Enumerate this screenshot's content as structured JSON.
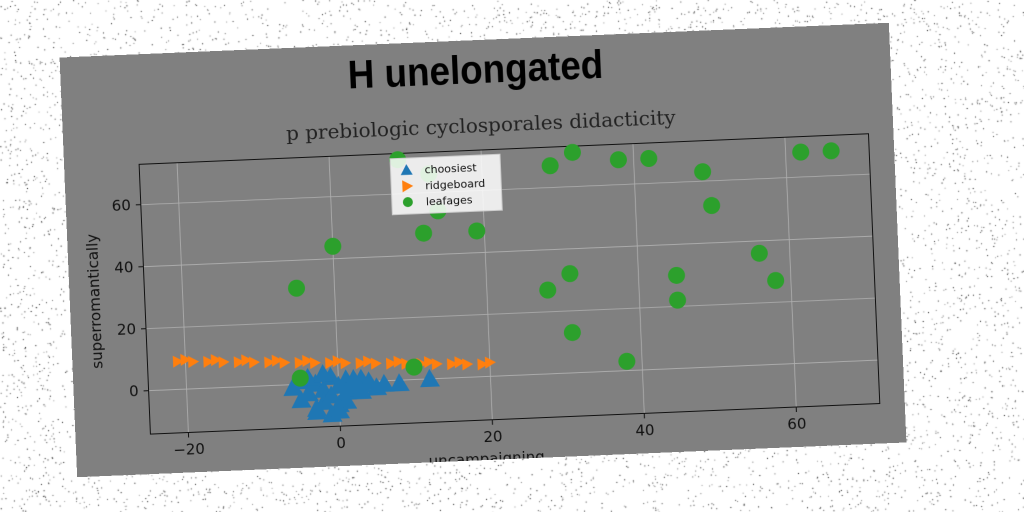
{
  "figure": {
    "suptitle": "H unelongated",
    "title": "p prebiologic cyclosporales didacticity"
  },
  "chart_data": {
    "type": "scatter",
    "title": "p prebiologic cyclosporales didacticity",
    "xlabel": "uncampaigning",
    "ylabel": "superromantically",
    "xlim": [
      -25,
      71
    ],
    "ylim": [
      -14,
      73
    ],
    "xticks": [
      "−20",
      "0",
      "20",
      "40",
      "60"
    ],
    "xtick_values": [
      -20,
      0,
      20,
      40,
      60
    ],
    "yticks": [
      "0",
      "20",
      "40",
      "60"
    ],
    "ytick_values": [
      0,
      20,
      40,
      60
    ],
    "grid": true,
    "legend_position": "top-center",
    "series": [
      {
        "name": "choosiest",
        "marker": "triangle-up",
        "color": "#1f77b4",
        "x": [
          -6,
          -5,
          -4,
          -3,
          -3,
          -2,
          -2,
          -1,
          -1,
          0,
          0,
          1,
          1,
          2,
          2,
          3,
          3,
          4,
          5,
          6,
          -5,
          -3,
          -1,
          1,
          3,
          -4,
          -2,
          0,
          2,
          8,
          12
        ],
        "y": [
          -1,
          1,
          -3,
          0,
          -8,
          -2,
          -6,
          2,
          -4,
          -1,
          -7,
          1,
          -3,
          -2,
          0,
          -1,
          1,
          0,
          -2,
          -1,
          -5,
          -9,
          -10,
          -6,
          -3,
          2,
          3,
          -9,
          1,
          -1,
          0
        ]
      },
      {
        "name": "ridgeboard",
        "marker": "triangle-right",
        "color": "#ff7f0e",
        "x": [
          -21,
          -19,
          -17,
          -15,
          -13,
          -11,
          -9,
          -7,
          -5,
          -3,
          -1,
          1,
          3,
          5,
          7,
          9,
          11,
          13,
          15,
          17,
          19,
          -20,
          -16,
          -12,
          -8,
          -4,
          0,
          4,
          8,
          12,
          16,
          20
        ],
        "y": [
          9,
          8.7,
          8.5,
          8.2,
          8,
          7.7,
          7.5,
          7.2,
          7,
          6.7,
          6.5,
          6.2,
          6,
          5.7,
          5.5,
          5.2,
          5,
          4.7,
          4.5,
          4.2,
          4,
          9.5,
          9,
          8.5,
          8,
          7.5,
          7,
          6.5,
          6,
          5.5,
          5,
          4.5
        ]
      },
      {
        "name": "leafages",
        "marker": "circle",
        "color": "#2ca02c",
        "x": [
          -5,
          -5,
          0,
          9,
          12,
          13,
          14,
          19,
          10,
          29,
          28,
          31,
          31,
          32,
          38,
          42,
          38,
          45,
          45,
          49,
          50,
          56,
          58,
          62,
          66
        ],
        "y": [
          31,
          2,
          44,
          71,
          47,
          66,
          54,
          47,
          4,
          67,
          27,
          32,
          13,
          71,
          68,
          68,
          3,
          22,
          30,
          63,
          52,
          36,
          27,
          68,
          68
        ]
      }
    ]
  }
}
